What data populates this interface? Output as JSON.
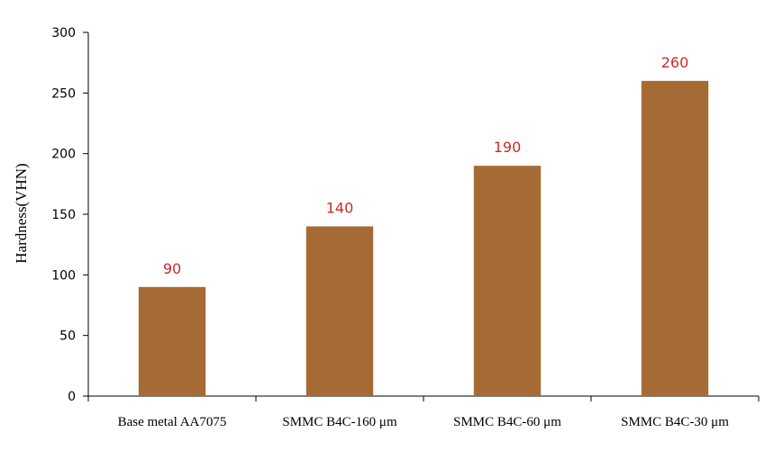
{
  "chart_data": {
    "type": "bar",
    "title": "",
    "xlabel": "",
    "ylabel": "Hardness(VHN)",
    "ylim": [
      0,
      300
    ],
    "yticks": [
      0,
      50,
      100,
      150,
      200,
      250,
      300
    ],
    "grid": false,
    "legend": "none",
    "categories": [
      "Base metal AA7075",
      "SMMC B4C-160 μm",
      "SMMC B4C-60 μm",
      "SMMC B4C-30 μm"
    ],
    "values": [
      90,
      140,
      190,
      260
    ],
    "data_labels": [
      "90",
      "140",
      "190",
      "260"
    ],
    "colors": {
      "bar": "#A66B34",
      "data_label": "#CC2A2A",
      "axis": "#000000"
    }
  }
}
